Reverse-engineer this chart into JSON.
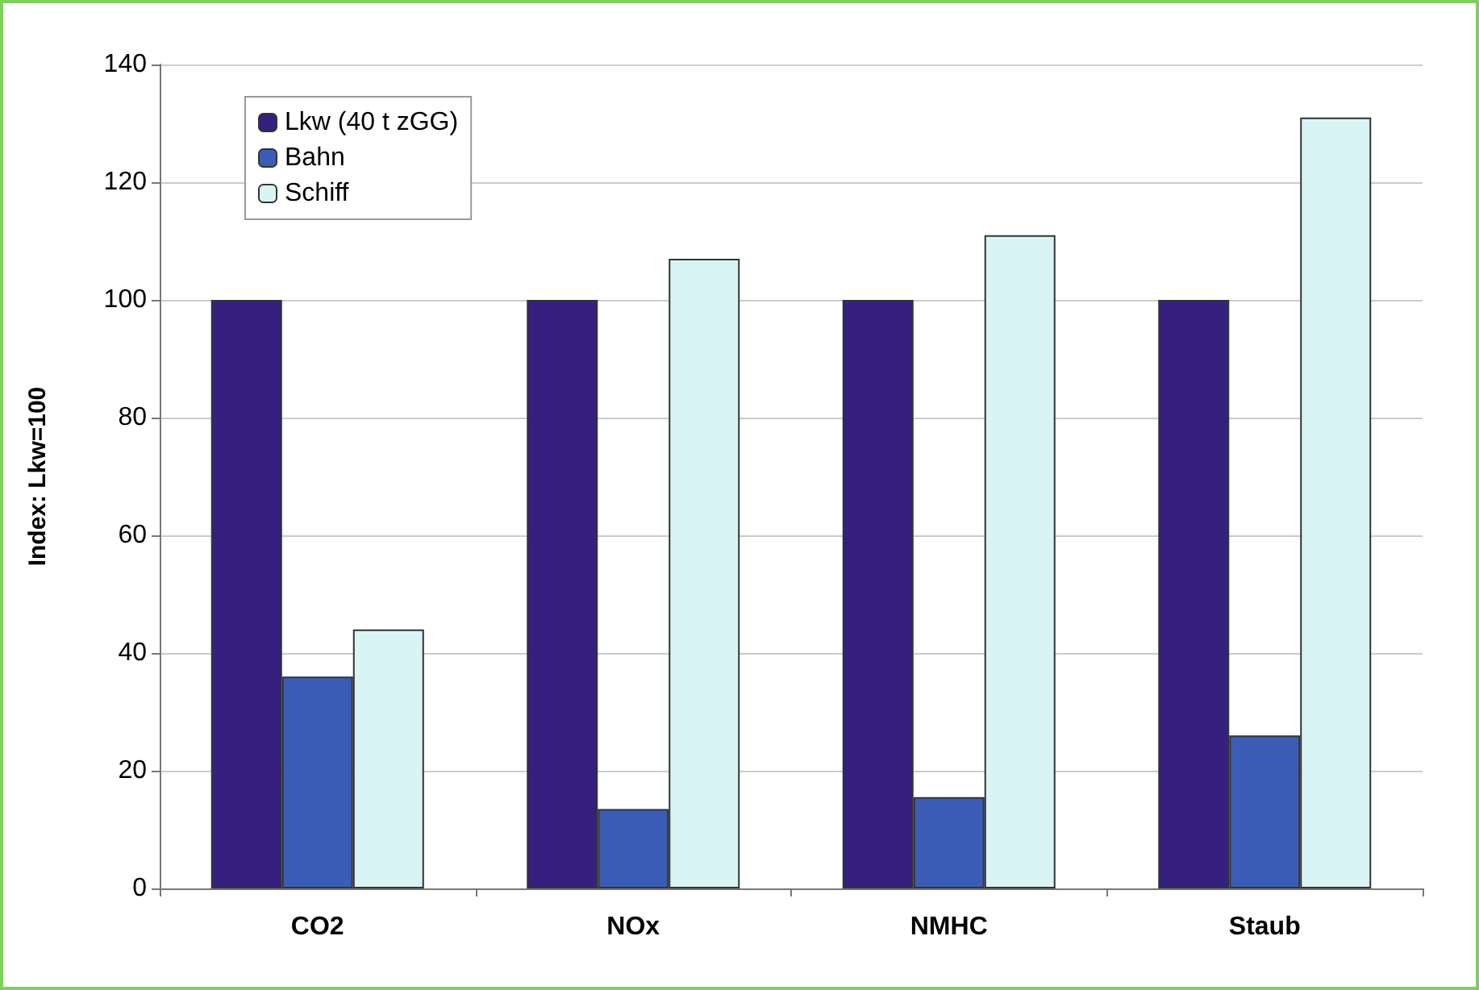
{
  "chart_data": {
    "type": "bar",
    "ylabel": "Index: Lkw=100",
    "categories": [
      "CO2",
      "NOx",
      "NMHC",
      "Staub"
    ],
    "series": [
      {
        "name": "Lkw (40 t zGG)",
        "color": "#35207f",
        "values": [
          100,
          100,
          100,
          100
        ]
      },
      {
        "name": "Bahn",
        "color": "#3c5db5",
        "values": [
          36,
          13.5,
          15.5,
          26
        ]
      },
      {
        "name": "Schiff",
        "color": "#d9f4f4",
        "values": [
          44,
          107,
          111,
          131
        ]
      }
    ],
    "ylim": [
      0,
      140
    ],
    "yticks": [
      0,
      20,
      40,
      60,
      80,
      100,
      120,
      140
    ],
    "grid": "y",
    "legend": "top left"
  }
}
